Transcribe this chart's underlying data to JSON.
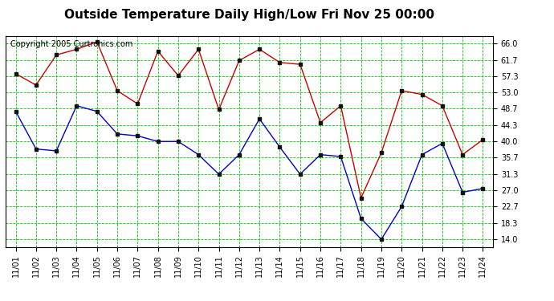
{
  "title": "Outside Temperature Daily High/Low Fri Nov 25 00:00",
  "copyright": "Copyright 2005 Curtronics.com",
  "x_labels": [
    "11/01",
    "11/02",
    "11/03",
    "11/04",
    "11/05",
    "11/06",
    "11/07",
    "11/08",
    "11/09",
    "11/10",
    "11/11",
    "11/12",
    "11/13",
    "11/14",
    "11/15",
    "11/16",
    "11/17",
    "11/18",
    "11/19",
    "11/20",
    "11/21",
    "11/22",
    "11/23",
    "11/24"
  ],
  "high_values": [
    58.0,
    55.0,
    63.0,
    64.5,
    66.5,
    53.5,
    50.0,
    64.0,
    57.5,
    64.5,
    48.5,
    61.5,
    64.5,
    61.0,
    60.5,
    45.0,
    49.5,
    25.0,
    37.0,
    53.5,
    52.5,
    49.5,
    36.5,
    40.5
  ],
  "low_values": [
    48.0,
    38.0,
    37.5,
    49.5,
    48.0,
    42.0,
    41.5,
    40.0,
    40.0,
    36.5,
    31.3,
    36.5,
    46.0,
    38.5,
    31.3,
    36.5,
    36.0,
    19.5,
    14.0,
    22.7,
    36.5,
    39.5,
    26.5,
    27.5
  ],
  "high_color": "#cc0000",
  "low_color": "#0000cc",
  "marker_color": "#111111",
  "grid_color": "#00cc00",
  "bg_color": "#ffffff",
  "plot_bg_color": "#ffffff",
  "yticks": [
    14.0,
    18.3,
    22.7,
    27.0,
    31.3,
    35.7,
    40.0,
    44.3,
    48.7,
    53.0,
    57.3,
    61.7,
    66.0
  ],
  "ylim": [
    12.0,
    68.0
  ],
  "title_fontsize": 11,
  "copyright_fontsize": 7,
  "tick_fontsize": 7
}
